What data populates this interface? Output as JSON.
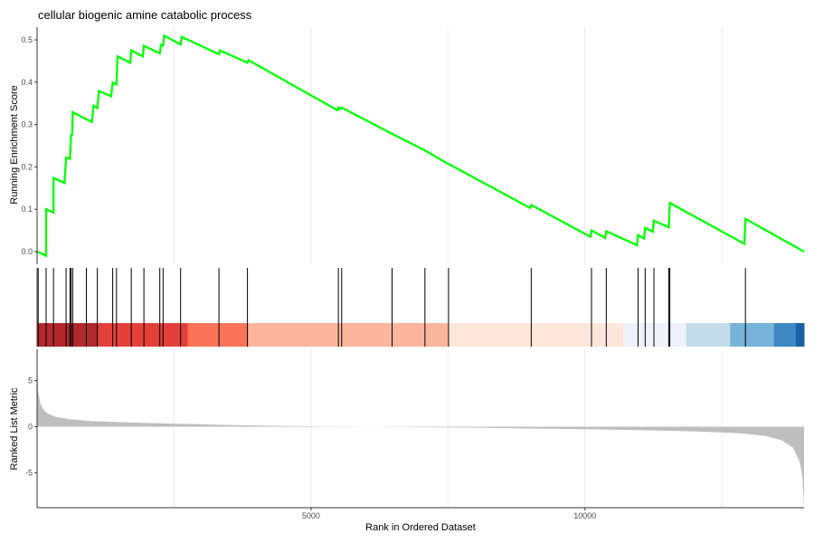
{
  "chart_data": {
    "type": "line",
    "title": "cellular biogenic amine catabolic process",
    "xlabel": "Rank in Ordered Dataset",
    "xlim": [
      0,
      14000
    ],
    "x_ticks": [
      5000,
      10000
    ],
    "x_tick_labels": [
      "5000",
      "10000"
    ],
    "colors": {
      "enrichment_line": "#00ff00",
      "hit_line": "#000000",
      "metric_fill": "#bebebe",
      "band": [
        "#b2282c",
        "#e3403a",
        "#fa7358",
        "#fcb69b",
        "#fee6db",
        "#eef2fb",
        "#c4dbe9",
        "#78b3d9",
        "#3f88c3",
        "#1d5fa5"
      ]
    },
    "panels": {
      "running_score": {
        "ylabel": "Running Enrichment Score",
        "ylim": [
          -0.03,
          0.53
        ],
        "y_ticks": [
          0.0,
          0.1,
          0.2,
          0.3,
          0.4,
          0.5
        ],
        "y_tick_labels": [
          "0.0",
          "0.1",
          "0.2",
          "0.3",
          "0.4",
          "0.5"
        ],
        "points": [
          [
            0,
            0.0
          ],
          [
            165,
            -0.01
          ],
          [
            165,
            0.1
          ],
          [
            300,
            0.092
          ],
          [
            300,
            0.174
          ],
          [
            500,
            0.162
          ],
          [
            530,
            0.222
          ],
          [
            600,
            0.219
          ],
          [
            620,
            0.275
          ],
          [
            640,
            0.276
          ],
          [
            650,
            0.329
          ],
          [
            1000,
            0.306
          ],
          [
            1030,
            0.345
          ],
          [
            1100,
            0.339
          ],
          [
            1130,
            0.379
          ],
          [
            1350,
            0.367
          ],
          [
            1380,
            0.399
          ],
          [
            1450,
            0.395
          ],
          [
            1470,
            0.461
          ],
          [
            1700,
            0.446
          ],
          [
            1720,
            0.475
          ],
          [
            1930,
            0.461
          ],
          [
            1950,
            0.486
          ],
          [
            2240,
            0.468
          ],
          [
            2260,
            0.488
          ],
          [
            2300,
            0.486
          ],
          [
            2320,
            0.51
          ],
          [
            2620,
            0.489
          ],
          [
            2640,
            0.507
          ],
          [
            3320,
            0.466
          ],
          [
            3340,
            0.475
          ],
          [
            3840,
            0.446
          ],
          [
            3860,
            0.452
          ],
          [
            5480,
            0.334
          ],
          [
            5500,
            0.34
          ],
          [
            5520,
            0.336
          ],
          [
            5560,
            0.34
          ],
          [
            6480,
            0.278
          ],
          [
            7080,
            0.239
          ],
          [
            7490,
            0.208
          ],
          [
            7510,
            0.207
          ],
          [
            9000,
            0.103
          ],
          [
            9020,
            0.11
          ],
          [
            10100,
            0.035
          ],
          [
            10120,
            0.05
          ],
          [
            10370,
            0.032
          ],
          [
            10390,
            0.048
          ],
          [
            10950,
            0.015
          ],
          [
            10970,
            0.039
          ],
          [
            11080,
            0.031
          ],
          [
            11100,
            0.056
          ],
          [
            11240,
            0.047
          ],
          [
            11260,
            0.073
          ],
          [
            11530,
            0.057
          ],
          [
            11550,
            0.115
          ],
          [
            12910,
            0.018
          ],
          [
            12930,
            0.077
          ],
          [
            14000,
            0.0
          ]
        ]
      },
      "hits": {
        "positions": [
          20,
          165,
          300,
          530,
          600,
          620,
          650,
          900,
          1100,
          1380,
          1450,
          1720,
          1950,
          2240,
          2300,
          2620,
          3320,
          3840,
          5500,
          5560,
          6480,
          7080,
          7510,
          9020,
          10120,
          10390,
          10970,
          11100,
          11260,
          11530,
          11550,
          12930
        ]
      },
      "color_band": {
        "boundaries": [
          0,
          1100,
          2750,
          3850,
          7500,
          10700,
          11850,
          12650,
          13450,
          13850,
          14000
        ]
      },
      "ranked_metric": {
        "ylabel": "Ranked List Metric",
        "ylim": [
          -8.8,
          8.4
        ],
        "y_ticks": [
          5,
          0,
          -5
        ],
        "y_tick_labels": [
          "5",
          "0",
          "-5"
        ],
        "curve": [
          [
            0,
            6.8
          ],
          [
            20,
            3.8
          ],
          [
            60,
            2.5
          ],
          [
            120,
            1.8
          ],
          [
            200,
            1.4
          ],
          [
            350,
            1.05
          ],
          [
            600,
            0.8
          ],
          [
            1000,
            0.6
          ],
          [
            2000,
            0.4
          ],
          [
            3000,
            0.25
          ],
          [
            4000,
            0.12
          ],
          [
            5000,
            0.05
          ],
          [
            6000,
            0.0
          ],
          [
            7000,
            -0.05
          ],
          [
            8000,
            -0.1
          ],
          [
            9000,
            -0.2
          ],
          [
            10000,
            -0.28
          ],
          [
            11000,
            -0.38
          ],
          [
            12000,
            -0.5
          ],
          [
            12800,
            -0.7
          ],
          [
            13300,
            -1.0
          ],
          [
            13600,
            -1.5
          ],
          [
            13800,
            -2.3
          ],
          [
            13920,
            -3.8
          ],
          [
            13970,
            -5.5
          ],
          [
            14000,
            -8.7
          ]
        ]
      }
    }
  }
}
